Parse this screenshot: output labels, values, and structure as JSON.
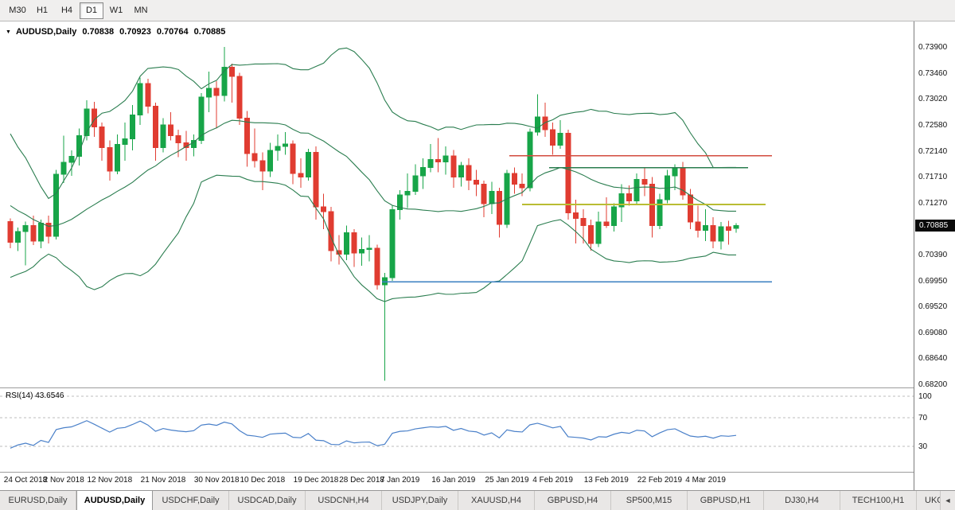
{
  "toolbar": {
    "timeframes": [
      {
        "label": "M30",
        "active": false
      },
      {
        "label": "H1",
        "active": false
      },
      {
        "label": "H4",
        "active": false
      },
      {
        "label": "D1",
        "active": true
      },
      {
        "label": "W1",
        "active": false
      },
      {
        "label": "MN",
        "active": false
      }
    ]
  },
  "chart_header": {
    "symbol": "AUDUSD,Daily",
    "open": "0.70838",
    "high": "0.70923",
    "low": "0.70764",
    "close": "0.70885"
  },
  "price_axis": {
    "labels": [
      "0.73900",
      "0.73460",
      "0.73020",
      "0.72580",
      "0.72140",
      "0.71710",
      "0.71270",
      "0.70830",
      "0.70390",
      "0.69950",
      "0.69520",
      "0.69080",
      "0.68640",
      "0.68200"
    ],
    "badge": "0.70885"
  },
  "rsi_pane": {
    "label": "RSI(14) 43.6546",
    "levels": [
      "100",
      "70",
      "30"
    ]
  },
  "bottom_tabs": {
    "tabs": [
      {
        "label": "EURUSD,Daily",
        "active": false
      },
      {
        "label": "AUDUSD,Daily",
        "active": true
      },
      {
        "label": "USDCHF,Daily",
        "active": false
      },
      {
        "label": "USDCAD,Daily",
        "active": false
      },
      {
        "label": "USDCNH,H4",
        "active": false
      },
      {
        "label": "USDJPY,Daily",
        "active": false
      },
      {
        "label": "XAUUSD,H4",
        "active": false
      },
      {
        "label": "GBPUSD,H4",
        "active": false
      },
      {
        "label": "SP500,M15",
        "active": false
      },
      {
        "label": "GBPUSD,H1",
        "active": false
      },
      {
        "label": "DJ30,H4",
        "active": false
      },
      {
        "label": "TECH100,H1",
        "active": false
      },
      {
        "label": "UKC",
        "active": false
      }
    ],
    "scroll_left_icon": "◄"
  },
  "chart_data": {
    "type": "candlestick",
    "symbol": "AUDUSD",
    "timeframe": "Daily",
    "title": "AUDUSD,Daily 0.70838 0.70923 0.70764 0.70885",
    "ylim": [
      0.682,
      0.739
    ],
    "current_price": 0.70885,
    "colors": {
      "up": "#17a548",
      "down": "#e03c31",
      "bollinger": "#2a7d4f",
      "rsi": "#4a80c9",
      "badge": "#0a0a0a"
    },
    "ticks": [
      [
        "24 Oct 2018",
        0
      ],
      [
        "2 Nov 2018",
        7
      ],
      [
        "12 Nov 2018",
        13
      ],
      [
        "21 Nov 2018",
        20
      ],
      [
        "30 Nov 2018",
        27
      ],
      [
        "10 Dec 2018",
        33
      ],
      [
        "19 Dec 2018",
        40
      ],
      [
        "28 Dec 2018",
        46
      ],
      [
        "7 Jan 2019",
        51
      ],
      [
        "16 Jan 2019",
        58
      ],
      [
        "25 Jan 2019",
        65
      ],
      [
        "4 Feb 2019",
        71
      ],
      [
        "13 Feb 2019",
        78
      ],
      [
        "22 Feb 2019",
        85
      ],
      [
        "4 Mar 2019",
        91
      ]
    ],
    "pre_closes": [
      0.7245,
      0.725,
      0.722,
      0.7228,
      0.721,
      0.718,
      0.715,
      0.7105,
      0.7088,
      0.7072,
      0.7108,
      0.71,
      0.7062,
      0.7048,
      0.7065,
      0.7092,
      0.7112,
      0.7116,
      0.709,
      0.7082
    ],
    "candles": [
      [
        0.7095,
        0.71,
        0.705,
        0.706
      ],
      [
        0.706,
        0.7085,
        0.7045,
        0.7078
      ],
      [
        0.7078,
        0.7095,
        0.7021,
        0.7088
      ],
      [
        0.7088,
        0.7105,
        0.7055,
        0.7062
      ],
      [
        0.7062,
        0.7098,
        0.705,
        0.7092
      ],
      [
        0.7092,
        0.7105,
        0.7058,
        0.707
      ],
      [
        0.707,
        0.7182,
        0.7065,
        0.7175
      ],
      [
        0.7175,
        0.724,
        0.716,
        0.7195
      ],
      [
        0.7195,
        0.7215,
        0.7172,
        0.7205
      ],
      [
        0.7205,
        0.7252,
        0.719,
        0.724
      ],
      [
        0.724,
        0.73,
        0.7232,
        0.7285
      ],
      [
        0.7285,
        0.7297,
        0.7238,
        0.7255
      ],
      [
        0.7255,
        0.7262,
        0.7198,
        0.722
      ],
      [
        0.722,
        0.7232,
        0.7164,
        0.718
      ],
      [
        0.718,
        0.7242,
        0.7175,
        0.7225
      ],
      [
        0.7225,
        0.7262,
        0.7198,
        0.7235
      ],
      [
        0.7235,
        0.7292,
        0.7215,
        0.7275
      ],
      [
        0.7275,
        0.7338,
        0.7258,
        0.7328
      ],
      [
        0.7328,
        0.7336,
        0.7278,
        0.729
      ],
      [
        0.729,
        0.7296,
        0.7198,
        0.722
      ],
      [
        0.722,
        0.727,
        0.7212,
        0.7258
      ],
      [
        0.7258,
        0.728,
        0.7232,
        0.724
      ],
      [
        0.724,
        0.725,
        0.7204,
        0.7228
      ],
      [
        0.7228,
        0.7248,
        0.7198,
        0.722
      ],
      [
        0.722,
        0.7242,
        0.7205,
        0.7232
      ],
      [
        0.7232,
        0.7312,
        0.7226,
        0.7305
      ],
      [
        0.7305,
        0.7348,
        0.728,
        0.732
      ],
      [
        0.732,
        0.7332,
        0.7252,
        0.7308
      ],
      [
        0.7308,
        0.739,
        0.7298,
        0.7356
      ],
      [
        0.7356,
        0.7362,
        0.7296,
        0.734
      ],
      [
        0.734,
        0.7346,
        0.7258,
        0.727
      ],
      [
        0.727,
        0.7282,
        0.7188,
        0.721
      ],
      [
        0.721,
        0.7252,
        0.7186,
        0.7198
      ],
      [
        0.7198,
        0.7212,
        0.7148,
        0.718
      ],
      [
        0.718,
        0.7228,
        0.717,
        0.7215
      ],
      [
        0.7215,
        0.7242,
        0.7198,
        0.7222
      ],
      [
        0.7222,
        0.7246,
        0.7208,
        0.7226
      ],
      [
        0.7226,
        0.7232,
        0.7158,
        0.7176
      ],
      [
        0.7176,
        0.7202,
        0.7152,
        0.717
      ],
      [
        0.717,
        0.7218,
        0.7164,
        0.7212
      ],
      [
        0.7212,
        0.7222,
        0.7098,
        0.712
      ],
      [
        0.712,
        0.7142,
        0.7082,
        0.7112
      ],
      [
        0.7112,
        0.712,
        0.7028,
        0.7046
      ],
      [
        0.7046,
        0.7072,
        0.7022,
        0.704
      ],
      [
        0.704,
        0.7088,
        0.703,
        0.7076
      ],
      [
        0.7076,
        0.7082,
        0.7018,
        0.7042
      ],
      [
        0.7042,
        0.7068,
        0.702,
        0.7048
      ],
      [
        0.7048,
        0.7072,
        0.7028,
        0.705
      ],
      [
        0.705,
        0.7056,
        0.698,
        0.6988
      ],
      [
        0.6988,
        0.7008,
        0.6826,
        0.7
      ],
      [
        0.7,
        0.7122,
        0.6995,
        0.7115
      ],
      [
        0.7115,
        0.7148,
        0.7098,
        0.714
      ],
      [
        0.714,
        0.7176,
        0.7118,
        0.7146
      ],
      [
        0.7146,
        0.7192,
        0.714,
        0.7172
      ],
      [
        0.7172,
        0.7202,
        0.715,
        0.7186
      ],
      [
        0.7186,
        0.7226,
        0.7178,
        0.72
      ],
      [
        0.72,
        0.7236,
        0.7178,
        0.7196
      ],
      [
        0.7196,
        0.7222,
        0.7174,
        0.7206
      ],
      [
        0.7206,
        0.7216,
        0.7152,
        0.717
      ],
      [
        0.717,
        0.7196,
        0.7154,
        0.719
      ],
      [
        0.719,
        0.7202,
        0.7148,
        0.7165
      ],
      [
        0.7165,
        0.7182,
        0.7138,
        0.7158
      ],
      [
        0.7158,
        0.7164,
        0.7102,
        0.7125
      ],
      [
        0.7125,
        0.7162,
        0.7108,
        0.7146
      ],
      [
        0.7146,
        0.7152,
        0.7068,
        0.709
      ],
      [
        0.709,
        0.7182,
        0.7084,
        0.7176
      ],
      [
        0.7176,
        0.7186,
        0.7142,
        0.7158
      ],
      [
        0.7158,
        0.7176,
        0.7138,
        0.7152
      ],
      [
        0.7152,
        0.7252,
        0.7146,
        0.7246
      ],
      [
        0.7246,
        0.731,
        0.724,
        0.7272
      ],
      [
        0.7272,
        0.7296,
        0.7238,
        0.725
      ],
      [
        0.725,
        0.7262,
        0.7208,
        0.7224
      ],
      [
        0.7224,
        0.7266,
        0.7218,
        0.7244
      ],
      [
        0.7244,
        0.725,
        0.7098,
        0.711
      ],
      [
        0.711,
        0.7132,
        0.7058,
        0.71
      ],
      [
        0.71,
        0.7116,
        0.7058,
        0.7088
      ],
      [
        0.7088,
        0.7098,
        0.7046,
        0.7058
      ],
      [
        0.7058,
        0.7112,
        0.7052,
        0.7094
      ],
      [
        0.7094,
        0.7136,
        0.7084,
        0.7088
      ],
      [
        0.7088,
        0.7126,
        0.7078,
        0.712
      ],
      [
        0.712,
        0.7158,
        0.7094,
        0.7142
      ],
      [
        0.7142,
        0.7156,
        0.7122,
        0.713
      ],
      [
        0.713,
        0.7176,
        0.7124,
        0.7166
      ],
      [
        0.7166,
        0.7186,
        0.7138,
        0.7158
      ],
      [
        0.7158,
        0.717,
        0.7068,
        0.7088
      ],
      [
        0.7088,
        0.7142,
        0.7082,
        0.7132
      ],
      [
        0.7132,
        0.7182,
        0.7126,
        0.7172
      ],
      [
        0.7172,
        0.7192,
        0.7148,
        0.7184
      ],
      [
        0.7184,
        0.7196,
        0.7132,
        0.714
      ],
      [
        0.714,
        0.715,
        0.7082,
        0.7094
      ],
      [
        0.7094,
        0.7122,
        0.7068,
        0.708
      ],
      [
        0.708,
        0.7116,
        0.7062,
        0.7088
      ],
      [
        0.7088,
        0.7102,
        0.705,
        0.7062
      ],
      [
        0.7062,
        0.7094,
        0.7048,
        0.7086
      ],
      [
        0.7086,
        0.7096,
        0.7056,
        0.708
      ],
      [
        0.70838,
        0.70923,
        0.70764,
        0.70885
      ]
    ],
    "indicators": {
      "bollinger": {
        "period": 20,
        "deviation": 2
      },
      "rsi": {
        "period": 14,
        "current": 43.6546,
        "levels": [
          100,
          70,
          30
        ]
      }
    },
    "hlines": [
      {
        "name": "resistance-red",
        "price": 0.7206,
        "x1": 640,
        "x2": 970,
        "color": "#d24b3e",
        "width": 1.6
      },
      {
        "name": "level-yellow",
        "price": 0.7124,
        "x1": 656,
        "x2": 962,
        "color": "#b9bd33",
        "width": 1.8
      },
      {
        "name": "support-blue",
        "price": 0.6993,
        "x1": 480,
        "x2": 970,
        "color": "#3a7fc1",
        "width": 1.8
      },
      {
        "name": "level-green",
        "price": 0.7186,
        "x1": 690,
        "x2": 940,
        "color": "#2a7d4f",
        "width": 1.4
      }
    ]
  }
}
